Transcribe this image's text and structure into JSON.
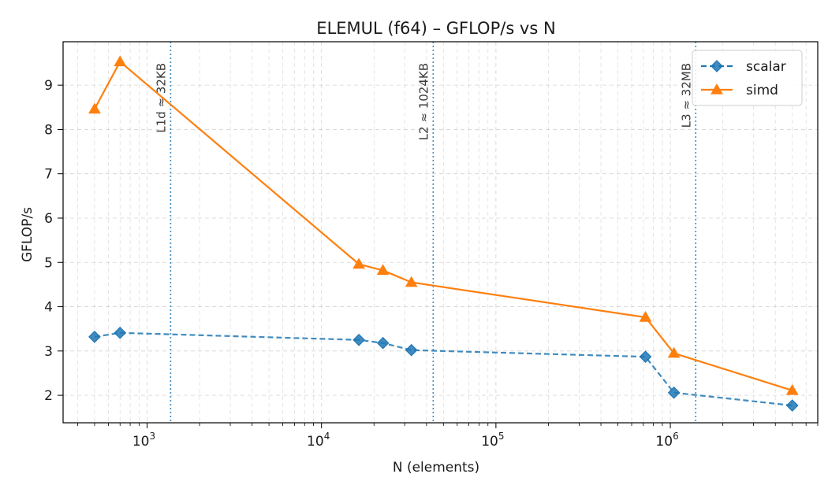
{
  "chart_data": {
    "type": "line",
    "title": "ELEMUL (f64) – GFLOP/s vs N",
    "xlabel": "N (elements)",
    "ylabel": "GFLOP/s",
    "xscale": "log",
    "xlim": [
      330,
      7000000
    ],
    "ylim": [
      1.38,
      9.98
    ],
    "x_ticks": [
      {
        "value": 1000,
        "base": "10",
        "exp": "3"
      },
      {
        "value": 10000,
        "base": "10",
        "exp": "4"
      },
      {
        "value": 100000,
        "base": "10",
        "exp": "5"
      },
      {
        "value": 1000000,
        "base": "10",
        "exp": "6"
      }
    ],
    "y_ticks": [
      2,
      3,
      4,
      5,
      6,
      7,
      8,
      9
    ],
    "grid": true,
    "legend_position": "top-right",
    "x": [
      500,
      700,
      16384,
      22500,
      32768,
      720000,
      1048576,
      5000000
    ],
    "series": [
      {
        "name": "scalar",
        "values": [
          3.32,
          3.41,
          3.25,
          3.18,
          3.02,
          2.87,
          2.06,
          1.77
        ],
        "color": "#1f77b4",
        "style": "dashed",
        "marker": "diamond"
      },
      {
        "name": "simd",
        "values": [
          8.46,
          9.53,
          4.96,
          4.82,
          4.55,
          3.76,
          2.95,
          2.11
        ],
        "color": "#ff7f0e",
        "style": "solid",
        "marker": "triangle"
      }
    ],
    "cache_lines": [
      {
        "x": 1365,
        "label": "L1d ≈ 32KB"
      },
      {
        "x": 43690,
        "label": "L2 ≈ 1024KB"
      },
      {
        "x": 1398101,
        "label": "L3 ≈ 32MB"
      }
    ]
  }
}
